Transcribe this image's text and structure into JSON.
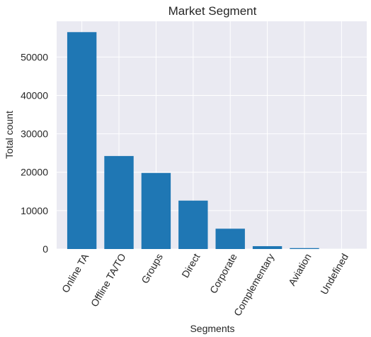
{
  "chart_data": {
    "type": "bar",
    "title": "Market Segment",
    "xlabel": "Segments",
    "ylabel": "Total count",
    "categories": [
      "Online TA",
      "Offline TA/TO",
      "Groups",
      "Direct",
      "Corporate",
      "Complementary",
      "Aviation",
      "Undefined"
    ],
    "values": [
      56477,
      24219,
      19811,
      12606,
      5295,
      743,
      237,
      2
    ],
    "ylim": [
      0,
      59300
    ],
    "yticks": [
      0,
      10000,
      20000,
      30000,
      40000,
      50000
    ],
    "ytick_labels": [
      "0",
      "10000",
      "20000",
      "30000",
      "40000",
      "50000"
    ],
    "grid": true,
    "colors": {
      "bar": "#1f77b4",
      "plot_bg": "#eaeaf2",
      "grid": "#ffffff",
      "text": "#262626"
    }
  }
}
